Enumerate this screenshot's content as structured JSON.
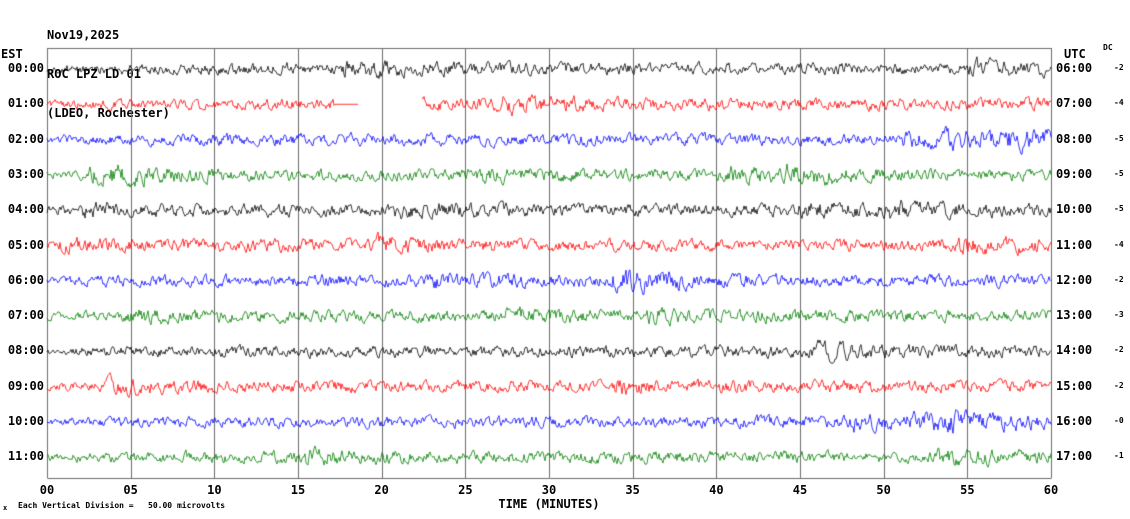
{
  "header": {
    "date": "Nov19,2025",
    "station": "ROC LPZ LD 01",
    "location": "(LDEO, Rochester)"
  },
  "axes": {
    "left_label": "EST",
    "right_label": "UTC",
    "dc_label": "DC",
    "x_label": "TIME (MINUTES)"
  },
  "footer": {
    "marker": "x",
    "text": "Each Vertical Division =   50.00 microvolts"
  },
  "chart_data": {
    "type": "line",
    "title": "ROC LPZ LD 01 (LDEO, Rochester) helicorder, Nov19,2025",
    "xlabel": "TIME (MINUTES)",
    "ylabel": "",
    "x_range_minutes": [
      0,
      60
    ],
    "x_tick_interval": 5,
    "x_ticks": [
      "00",
      "05",
      "10",
      "15",
      "20",
      "25",
      "30",
      "35",
      "40",
      "45",
      "50",
      "55",
      "60"
    ],
    "grid": true,
    "vertical_division_microvolts": 50.0,
    "trace_color_cycle": [
      "#000000",
      "#ff0000",
      "#0000ff",
      "#007f00"
    ],
    "rows": [
      {
        "est": "00:00",
        "utc": "06:00",
        "dc": "-2",
        "color": "#000000"
      },
      {
        "est": "01:00",
        "utc": "07:00",
        "dc": "-4",
        "color": "#ff0000",
        "flat_minutes": [
          17.2,
          18.6
        ],
        "gap_minutes": [
          18.6,
          22.4
        ]
      },
      {
        "est": "02:00",
        "utc": "08:00",
        "dc": "-5",
        "color": "#0000ff"
      },
      {
        "est": "03:00",
        "utc": "09:00",
        "dc": "-5",
        "color": "#007f00"
      },
      {
        "est": "04:00",
        "utc": "10:00",
        "dc": "-5",
        "color": "#000000"
      },
      {
        "est": "05:00",
        "utc": "11:00",
        "dc": "-4",
        "color": "#ff0000"
      },
      {
        "est": "06:00",
        "utc": "12:00",
        "dc": "-2",
        "color": "#0000ff"
      },
      {
        "est": "07:00",
        "utc": "13:00",
        "dc": "-3",
        "color": "#007f00"
      },
      {
        "est": "08:00",
        "utc": "14:00",
        "dc": "-2",
        "color": "#000000"
      },
      {
        "est": "09:00",
        "utc": "15:00",
        "dc": "-2",
        "color": "#ff0000"
      },
      {
        "est": "10:00",
        "utc": "16:00",
        "dc": "-0",
        "color": "#0000ff"
      },
      {
        "est": "11:00",
        "utc": "17:00",
        "dc": "-1",
        "color": "#007f00"
      }
    ],
    "noise_description": "continuous microseismic background noise on every hourly trace, peak-to-peak roughly one vertical division with intermittent small bursts; 01:00 EST trace has a telemetry gap from ~18.6 to ~22.4 minutes preceded by a short flatline"
  }
}
